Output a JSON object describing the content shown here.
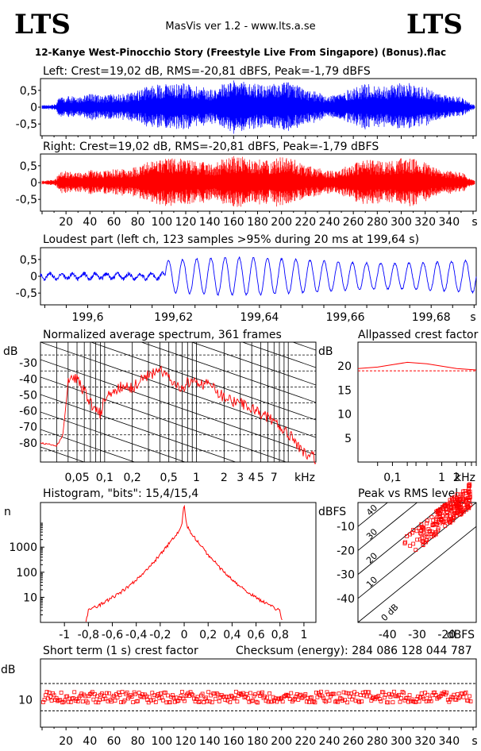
{
  "header": {
    "logo_left": "LTS",
    "logo_right": "LTS",
    "app_title": "MasVis ver 1.2 - www.lts.a.se",
    "file_name": "12-Kanye West-Pinocchio Story (Freestyle Live From Singapore) (Bonus).flac"
  },
  "colors": {
    "left": "#0000ff",
    "right": "#ff0000",
    "axis": "#000000"
  },
  "panels": {
    "left_title": "Left: Crest=19,02 dB, RMS=-20,81 dBFS, Peak=-1,79 dBFS",
    "right_title": "Right: Crest=19,02 dB, RMS=-20,81 dBFS, Peak=-1,79 dBFS",
    "loudest_title": "Loudest part (left  ch, 123 samples >95% during 20 ms at 199,64 s)",
    "spectrum_title": "Normalized average spectrum, 361 frames",
    "allpass_title": "Allpassed crest factor",
    "histogram_title": "Histogram, \"bits\": 15,4/15,4",
    "peakrms_title": "Peak vs RMS level",
    "shortterm_title": "Short term (1 s) crest factor",
    "checksum": "Checksum (energy):   284 086 128 044 787"
  },
  "chart_data": [
    {
      "type": "line",
      "id": "left_waveform",
      "title": "Left: Crest=19,02 dB, RMS=-20,81 dBFS, Peak=-1,79 dBFS",
      "y_ticks": [
        "0,5",
        "0",
        "-0,5"
      ],
      "ylim": [
        -0.85,
        0.85
      ],
      "xlim": [
        0,
        360
      ],
      "envelope_time_s": [
        0,
        10,
        15,
        20,
        30,
        40,
        50,
        60,
        70,
        80,
        90,
        100,
        110,
        120,
        130,
        140,
        150,
        160,
        170,
        180,
        190,
        200,
        210,
        220,
        230,
        240,
        250,
        260,
        270,
        280,
        290,
        300,
        310,
        320,
        330,
        340,
        350,
        355,
        360
      ],
      "envelope_amp": [
        0.06,
        0.08,
        0.3,
        0.35,
        0.3,
        0.4,
        0.35,
        0.4,
        0.4,
        0.5,
        0.65,
        0.7,
        0.75,
        0.7,
        0.65,
        0.55,
        0.7,
        0.8,
        0.75,
        0.7,
        0.65,
        0.8,
        0.7,
        0.5,
        0.45,
        0.35,
        0.45,
        0.6,
        0.7,
        0.65,
        0.65,
        0.75,
        0.7,
        0.6,
        0.4,
        0.35,
        0.3,
        0.15,
        0.06
      ]
    },
    {
      "type": "line",
      "id": "right_waveform",
      "title": "Right: Crest=19,02 dB, RMS=-20,81 dBFS, Peak=-1,79 dBFS",
      "y_ticks": [
        "0,5",
        "0",
        "-0,5"
      ],
      "ylim": [
        -0.85,
        0.85
      ],
      "xlim": [
        0,
        360
      ],
      "x_ticks": [
        "20",
        "40",
        "60",
        "80",
        "100",
        "120",
        "140",
        "160",
        "180",
        "200",
        "220",
        "240",
        "260",
        "280",
        "300",
        "320",
        "340",
        "s"
      ],
      "envelope_time_s": [
        0,
        10,
        15,
        20,
        30,
        40,
        50,
        60,
        70,
        80,
        90,
        100,
        110,
        120,
        130,
        140,
        150,
        160,
        170,
        180,
        190,
        200,
        210,
        220,
        230,
        240,
        250,
        260,
        270,
        280,
        290,
        300,
        310,
        320,
        330,
        340,
        350,
        355,
        360
      ],
      "envelope_amp": [
        0.06,
        0.08,
        0.3,
        0.35,
        0.3,
        0.4,
        0.35,
        0.4,
        0.4,
        0.5,
        0.65,
        0.7,
        0.75,
        0.7,
        0.65,
        0.55,
        0.7,
        0.8,
        0.75,
        0.7,
        0.65,
        0.8,
        0.7,
        0.5,
        0.45,
        0.35,
        0.45,
        0.6,
        0.7,
        0.65,
        0.65,
        0.75,
        0.7,
        0.6,
        0.4,
        0.35,
        0.3,
        0.15,
        0.06
      ]
    },
    {
      "type": "line",
      "id": "loudest_part",
      "title": "Loudest part (left  ch, 123 samples >95% during 20 ms at 199,64 s)",
      "y_ticks": [
        "0,5",
        "0",
        "-0,5"
      ],
      "x_ticks": [
        "199,6",
        "199,62",
        "199,64",
        "199,66",
        "199,68",
        "s"
      ],
      "xlim": [
        199.589,
        199.6905
      ],
      "ylim": [
        -0.85,
        0.85
      ],
      "oscillation_start_s": 199.618,
      "amplitude_before": 0.08,
      "amplitude_after": 0.55,
      "cycle_count": 22
    },
    {
      "type": "line",
      "id": "average_spectrum",
      "title": "Normalized average spectrum, 361 frames",
      "ylabel": "dB",
      "y_ticks": [
        "-30",
        "-40",
        "-50",
        "-60",
        "-70",
        "-80"
      ],
      "x_ticks": [
        "0,05",
        "0,1",
        "0,2",
        "0,5",
        "1",
        "2",
        "3",
        "4",
        "5",
        "7",
        "kHz"
      ],
      "xlim_khz": [
        0.02,
        20
      ],
      "ylim": [
        -92,
        -17
      ],
      "freq_khz": [
        0.02,
        0.025,
        0.03,
        0.035,
        0.04,
        0.05,
        0.06,
        0.07,
        0.08,
        0.09,
        0.1,
        0.12,
        0.15,
        0.2,
        0.25,
        0.3,
        0.35,
        0.4,
        0.5,
        0.6,
        0.7,
        0.8,
        1,
        1.5,
        2,
        2.5,
        3,
        4,
        5,
        6,
        7,
        8,
        9,
        10,
        12,
        15,
        20
      ],
      "level_db": [
        -80,
        -81,
        -82,
        -75,
        -42,
        -40,
        -48,
        -55,
        -60,
        -62,
        -52,
        -50,
        -45,
        -46,
        -40,
        -38,
        -36,
        -35,
        -40,
        -44,
        -46,
        -42,
        -42,
        -45,
        -52,
        -54,
        -55,
        -58,
        -62,
        -64,
        -66,
        -70,
        -72,
        -74,
        -80,
        -86,
        -90
      ]
    },
    {
      "type": "line",
      "id": "allpassed_crest",
      "title": "Allpassed crest factor",
      "ylabel": "dB",
      "y_ticks": [
        "20",
        "15",
        "10",
        "5"
      ],
      "x_ticks": [
        "0,1",
        "1",
        "2",
        "kHz"
      ],
      "xlim_khz": [
        0.02,
        5
      ],
      "ylim": [
        0,
        25
      ],
      "freq_khz": [
        0.02,
        0.05,
        0.1,
        0.2,
        0.5,
        1,
        2,
        5
      ],
      "crest_db": [
        19.5,
        19.8,
        20.3,
        20.8,
        20.5,
        20.0,
        19.5,
        19.2
      ],
      "reference_db": 19.02
    },
    {
      "type": "line",
      "id": "histogram",
      "title": "Histogram, \"bits\": 15,4/15,4",
      "ylabel": "n",
      "y_ticks": [
        "1000",
        "100",
        "10"
      ],
      "x_ticks": [
        "-1",
        "-0,8",
        "-0,6",
        "-0,4",
        "-0,2",
        "0",
        "0,2",
        "0,4",
        "0,6",
        "0,8",
        "1"
      ],
      "xlim": [
        -1.2,
        1.1
      ],
      "ylim_log": [
        1,
        60000
      ],
      "sample_value": [
        -0.82,
        -0.8,
        -0.7,
        -0.6,
        -0.5,
        -0.4,
        -0.3,
        -0.2,
        -0.15,
        -0.1,
        -0.05,
        -0.02,
        0,
        0.02,
        0.05,
        0.1,
        0.15,
        0.2,
        0.3,
        0.4,
        0.5,
        0.6,
        0.7,
        0.8,
        0.82
      ],
      "count": [
        1,
        3,
        5,
        10,
        20,
        50,
        150,
        500,
        1000,
        2000,
        4000,
        8000,
        50000,
        8000,
        4000,
        2000,
        1000,
        500,
        150,
        50,
        20,
        10,
        5,
        3,
        1
      ]
    },
    {
      "type": "scatter",
      "id": "peak_vs_rms",
      "title": "Peak vs RMS level",
      "ylabel": "dBFS",
      "xlabel": "dBFS",
      "y_ticks": [
        "-10",
        "-20",
        "-30",
        "-40"
      ],
      "x_ticks": [
        "-40",
        "-30",
        "-20"
      ],
      "crest_line_labels": [
        "40",
        "30",
        "20",
        "10",
        "0 dB"
      ],
      "xlim": [
        -50,
        -10
      ],
      "ylim": [
        -50,
        0
      ],
      "rms_range": [
        -35,
        -12
      ],
      "crest_range_db": [
        10,
        20
      ]
    },
    {
      "type": "scatter",
      "id": "short_term_crest",
      "title": "Short term (1 s) crest factor",
      "ylabel": "dB",
      "y_ticks": [
        "10"
      ],
      "x_ticks": [
        "20",
        "40",
        "60",
        "80",
        "100",
        "120",
        "140",
        "160",
        "180",
        "200",
        "220",
        "240",
        "260",
        "280",
        "300",
        "320",
        "340",
        "s"
      ],
      "xlim": [
        0,
        360
      ],
      "ylim": [
        0,
        25
      ],
      "dashed_levels_db": [
        6,
        16
      ],
      "mean_db": 11,
      "spread_db": 2
    }
  ]
}
